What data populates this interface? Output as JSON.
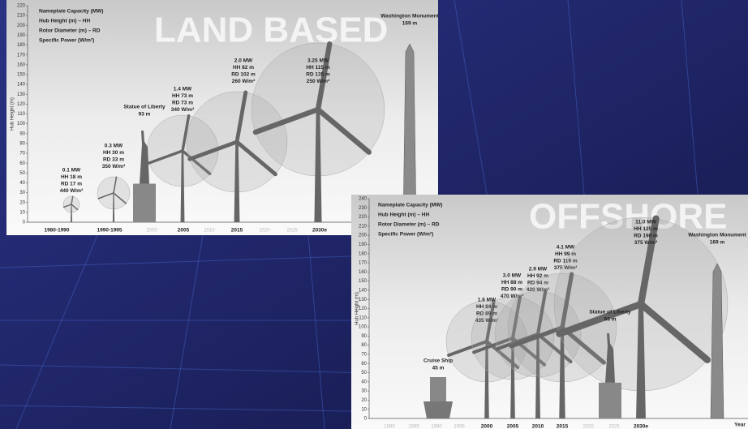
{
  "panels": [
    {
      "watermark": "LAND BASED",
      "legend": [
        "Nameplate Capacity (MW)",
        "Hub Height (m) – HH",
        "Rotor Diameter (m) – RD",
        "Specific Power (W/m²)"
      ],
      "y_label": "Hub Height (m)",
      "yticks": [
        0,
        10,
        20,
        30,
        40,
        50,
        60,
        70,
        80,
        90,
        100,
        110,
        120,
        130,
        140,
        150,
        160,
        170,
        180,
        190,
        200,
        210,
        220
      ],
      "x_labels": [
        "1980-1990",
        "1990-1995",
        "2000",
        "2005",
        "2010",
        "2015",
        "2020",
        "2025",
        "2030e"
      ],
      "turbines": [
        [
          "0.1 MW",
          "HH 18 m",
          "RD 17 m",
          "440 W/m²"
        ],
        [
          "0.3 MW",
          "HH 30 m",
          "RD 33 m",
          "350 W/m²"
        ],
        [
          "1.4 MW",
          "HH 73 m",
          "RD 73 m",
          "340 W/m²"
        ],
        [
          "2.0 MW",
          "HH 82 m",
          "RD 102 m",
          "260 W/m²"
        ],
        [
          "3.25 MW",
          "HH 115 m",
          "RD 135 m",
          "250 W/m²"
        ]
      ],
      "landmarks": [
        [
          "Statue of Liberty",
          "93 m"
        ],
        [
          "Washington Monument",
          "169 m"
        ]
      ]
    },
    {
      "watermark": "OFFSHORE",
      "legend": [
        "Nameplate Capacity (MW)",
        "Hub Height (m) – HH",
        "Rotor Diameter (m) – RD",
        "Specific Power (W/m²)"
      ],
      "y_label": "Hub Height (m)",
      "x_title": "Year",
      "yticks": [
        0,
        10,
        20,
        30,
        40,
        50,
        60,
        70,
        80,
        90,
        100,
        110,
        120,
        130,
        140,
        150,
        160,
        170,
        180,
        190,
        200,
        210,
        220,
        230,
        240
      ],
      "x_labels": [
        "1990",
        "1995",
        "1990",
        "1995",
        "2000",
        "2005",
        "2010",
        "2015",
        "2020",
        "2025",
        "2030e"
      ],
      "turbines": [
        [
          "1.6 MW",
          "HH 84 m",
          "RD 89 m",
          "435 W/m²"
        ],
        [
          "3.0 MW",
          "HH 88 m",
          "RD 90 m",
          "470 W/m²"
        ],
        [
          "2.9 MW",
          "HH 92 m",
          "RD 94 m",
          "420 W/m²"
        ],
        [
          "4.1 MW",
          "HH 99 m",
          "RD 119 m",
          "375 W/m²"
        ],
        [
          "11.0 MW",
          "HH 125 m",
          "RD 190 m",
          "375 W/m²"
        ]
      ],
      "landmarks": [
        [
          "Cruise Ship",
          "45 m"
        ],
        [
          "Statue of Liberty",
          "93 m"
        ],
        [
          "Washington Monument",
          "169 m"
        ]
      ]
    }
  ]
}
